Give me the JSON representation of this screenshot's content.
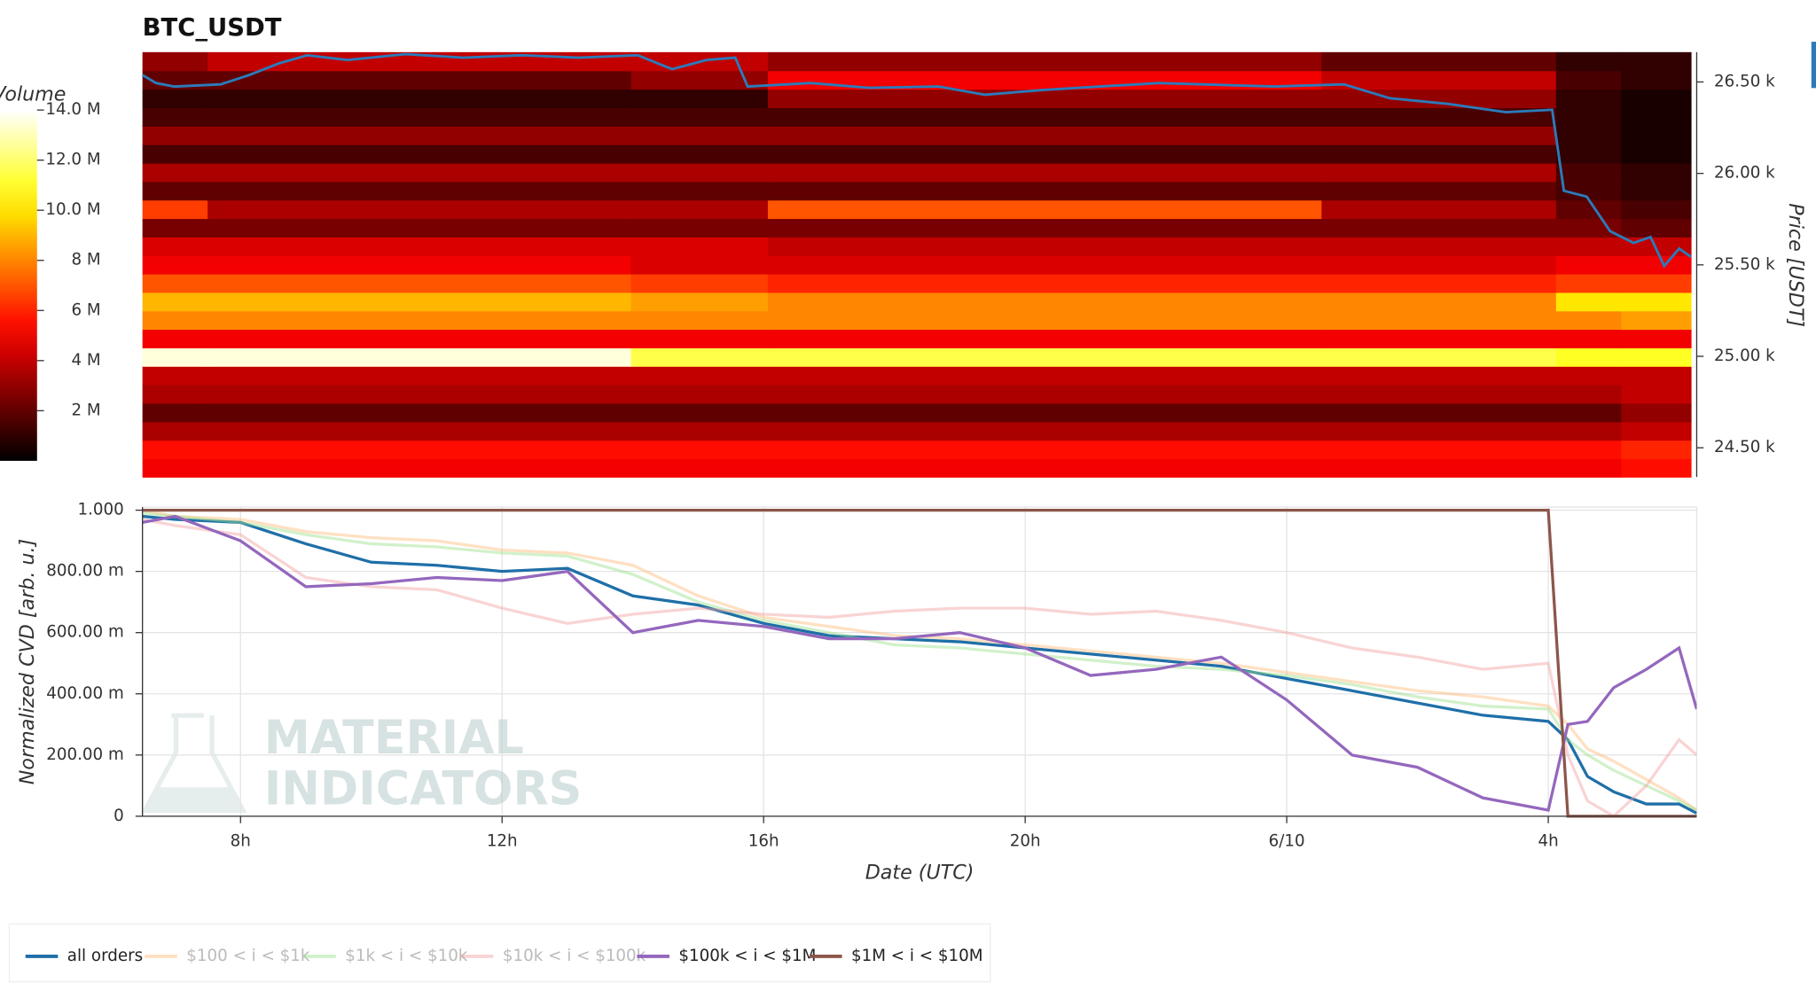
{
  "chart_data": [
    {
      "type": "heatmap",
      "title": "BTC_USDT",
      "xbins": [
        6.5,
        7.5,
        14,
        16.1,
        24.6,
        28.2,
        29.2,
        30.27
      ],
      "ybins": [
        24340,
        24441,
        24542,
        24643,
        24744,
        24845,
        24946,
        25047,
        25148,
        25249,
        25350,
        25451,
        25552,
        25653,
        25754,
        25855,
        25956,
        26057,
        26158,
        26259,
        26360,
        26461,
        26562,
        26663
      ],
      "values": [
        [
          5,
          5,
          5,
          5,
          5,
          5,
          5.5
        ],
        [
          5.5,
          5.5,
          5.5,
          5.5,
          5.5,
          5.5,
          6
        ],
        [
          3.5,
          3.5,
          3.5,
          3.5,
          3.5,
          3.5,
          4
        ],
        [
          2,
          2,
          2,
          2,
          2,
          2,
          3
        ],
        [
          3.5,
          3.5,
          3.5,
          3.5,
          3.5,
          3.5,
          4
        ],
        [
          4,
          4,
          4,
          4,
          4,
          4,
          4
        ],
        [
          13.5,
          13.5,
          11.5,
          11.5,
          11.5,
          11,
          11
        ],
        [
          5,
          5,
          5,
          5,
          5,
          5,
          5
        ],
        [
          8,
          8,
          8,
          8,
          8,
          8,
          8.5
        ],
        [
          9,
          9,
          8.5,
          8,
          8,
          10,
          10
        ],
        [
          7,
          7,
          6.5,
          6,
          6,
          6.5,
          6.5
        ],
        [
          5,
          5,
          4.5,
          4.5,
          4.5,
          5,
          5
        ],
        [
          4.5,
          4.5,
          4.5,
          4,
          4,
          4,
          4
        ],
        [
          2.5,
          2.5,
          2.5,
          2.5,
          2.5,
          2.5,
          2
        ],
        [
          6.5,
          3.5,
          3.5,
          7,
          3.5,
          2,
          1.5
        ],
        [
          2,
          2,
          2,
          2,
          2,
          1.5,
          1
        ],
        [
          3.5,
          3.5,
          3.5,
          3.5,
          3.5,
          1.5,
          1
        ],
        [
          1.5,
          1.5,
          1.5,
          1.5,
          1.5,
          1,
          0.5
        ],
        [
          3,
          3,
          3,
          3,
          3,
          1,
          0.5
        ],
        [
          1.5,
          1.5,
          1.5,
          1.5,
          1.5,
          1,
          0.5
        ],
        [
          1,
          1,
          1,
          3,
          3,
          1,
          0.5
        ],
        [
          2,
          2,
          3,
          5,
          4,
          1.5,
          1
        ],
        [
          3,
          4,
          4,
          3,
          2,
          1,
          1
        ]
      ],
      "xlim": [
        6.5,
        30.27
      ],
      "ylim": [
        24340,
        26663
      ],
      "yticks": [
        {
          "value": 24500,
          "label": "24.50 k"
        },
        {
          "value": 25000,
          "label": "25.00 k"
        },
        {
          "value": 25500,
          "label": "25.50 k"
        },
        {
          "value": 26000,
          "label": "26.00 k"
        },
        {
          "value": 26500,
          "label": "26.50 k"
        }
      ],
      "ylabel": "Price [USDT]",
      "colorbar": {
        "title": "Volume",
        "lim": [
          0,
          14
        ],
        "ticks": [
          {
            "value": 2,
            "label": "2 M"
          },
          {
            "value": 4,
            "label": "4 M"
          },
          {
            "value": 6,
            "label": "6 M"
          },
          {
            "value": 8,
            "label": "8 M"
          },
          {
            "value": 10,
            "label": "10.0 M"
          },
          {
            "value": 12,
            "label": "12.0 M"
          },
          {
            "value": 14,
            "label": "14.0 M"
          }
        ]
      },
      "price_line": {
        "color": "#2b7bba",
        "x": [
          6.5,
          6.71,
          6.99,
          7.7,
          8.14,
          8.59,
          9.03,
          9.65,
          10.54,
          11.43,
          12.32,
          13.2,
          14.1,
          14.63,
          15.16,
          15.6,
          15.79,
          16.76,
          17.65,
          18.72,
          19.43,
          20.32,
          21.2,
          22.1,
          23.88,
          24.94,
          25.65,
          26.54,
          27.43,
          28.14,
          28.32,
          28.67,
          29.03,
          29.39,
          29.65,
          29.86,
          30.09,
          30.27
        ],
        "values": [
          26538,
          26494,
          26475,
          26487,
          26538,
          26601,
          26646,
          26620,
          26652,
          26633,
          26646,
          26633,
          26646,
          26570,
          26620,
          26633,
          26475,
          26494,
          26468,
          26475,
          26430,
          26456,
          26475,
          26494,
          26475,
          26487,
          26411,
          26380,
          26335,
          26348,
          25905,
          25873,
          25684,
          25620,
          25652,
          25494,
          25589,
          25544
        ]
      }
    },
    {
      "type": "line",
      "x": [
        6.5,
        7,
        8,
        9,
        10,
        11,
        12,
        13,
        14,
        15,
        16,
        17,
        18,
        19,
        20,
        21,
        22,
        23,
        24,
        25,
        26,
        27,
        28,
        28.3,
        28.6,
        29,
        29.5,
        30,
        30.27
      ],
      "series": [
        {
          "name": "all orders",
          "color": "#1f6fa8",
          "alpha": 1,
          "values": [
            0.98,
            0.97,
            0.96,
            0.89,
            0.83,
            0.82,
            0.8,
            0.81,
            0.72,
            0.69,
            0.63,
            0.59,
            0.58,
            0.57,
            0.55,
            0.53,
            0.51,
            0.49,
            0.45,
            0.41,
            0.37,
            0.33,
            0.31,
            0.25,
            0.13,
            0.08,
            0.04,
            0.04,
            0.01
          ]
        },
        {
          "name": "$100 < i < $1k",
          "color": "#ffbb78",
          "alpha": 0.45,
          "values": [
            1.0,
            0.98,
            0.97,
            0.93,
            0.91,
            0.9,
            0.87,
            0.86,
            0.82,
            0.72,
            0.65,
            0.62,
            0.59,
            0.58,
            0.56,
            0.54,
            0.52,
            0.5,
            0.47,
            0.44,
            0.41,
            0.39,
            0.36,
            0.3,
            0.22,
            0.18,
            0.12,
            0.06,
            0.02
          ]
        },
        {
          "name": "$1k < i < $10k",
          "color": "#98df8a",
          "alpha": 0.45,
          "values": [
            0.99,
            0.98,
            0.96,
            0.92,
            0.89,
            0.88,
            0.86,
            0.85,
            0.79,
            0.7,
            0.64,
            0.6,
            0.56,
            0.55,
            0.53,
            0.51,
            0.49,
            0.48,
            0.46,
            0.43,
            0.39,
            0.36,
            0.35,
            0.25,
            0.2,
            0.15,
            0.1,
            0.05,
            0.02
          ]
        },
        {
          "name": "$10k < i < $100k",
          "color": "#f2a0a0",
          "alpha": 0.45,
          "values": [
            0.97,
            0.95,
            0.92,
            0.78,
            0.75,
            0.74,
            0.68,
            0.63,
            0.66,
            0.68,
            0.66,
            0.65,
            0.67,
            0.68,
            0.68,
            0.66,
            0.67,
            0.64,
            0.6,
            0.55,
            0.52,
            0.48,
            0.5,
            0.2,
            0.05,
            0.0,
            0.1,
            0.25,
            0.2
          ]
        },
        {
          "name": "$100k < i < $1M",
          "color": "#9467bd",
          "alpha": 1,
          "values": [
            0.96,
            0.98,
            0.9,
            0.75,
            0.76,
            0.78,
            0.77,
            0.8,
            0.6,
            0.64,
            0.62,
            0.58,
            0.58,
            0.6,
            0.55,
            0.46,
            0.48,
            0.52,
            0.38,
            0.2,
            0.16,
            0.06,
            0.02,
            0.3,
            0.31,
            0.42,
            0.48,
            0.55,
            0.35
          ]
        },
        {
          "name": "$1M < i < $10M",
          "color": "#8c564b",
          "alpha": 1,
          "values": [
            1,
            1,
            1,
            1,
            1,
            1,
            1,
            1,
            1,
            1,
            1,
            1,
            1,
            1,
            1,
            1,
            1,
            1,
            1,
            1,
            1,
            1,
            1,
            0,
            0,
            0,
            0,
            0,
            0
          ]
        }
      ],
      "xlim": [
        6.5,
        30.27
      ],
      "ylim": [
        0,
        1.01
      ],
      "xticks": [
        {
          "value": 8,
          "label": "8h"
        },
        {
          "value": 12,
          "label": "12h"
        },
        {
          "value": 16,
          "label": "16h"
        },
        {
          "value": 20,
          "label": "20h"
        },
        {
          "value": 24,
          "label": "6/10"
        },
        {
          "value": 28,
          "label": "4h"
        }
      ],
      "yticks": [
        0,
        {
          "value": 0.2,
          "label": "200.00 m"
        },
        {
          "value": 0.4,
          "label": "400.00 m"
        },
        {
          "value": 0.6,
          "label": "600.00 m"
        },
        {
          "value": 0.8,
          "label": "800.00 m"
        },
        {
          "value": 1,
          "label": "1.000"
        }
      ],
      "xlabel": "Date (UTC)",
      "ylabel": "Normalized CVD [arb. u.]",
      "grid": true,
      "watermark": [
        "MATERIAL",
        "INDICATORS"
      ]
    }
  ]
}
